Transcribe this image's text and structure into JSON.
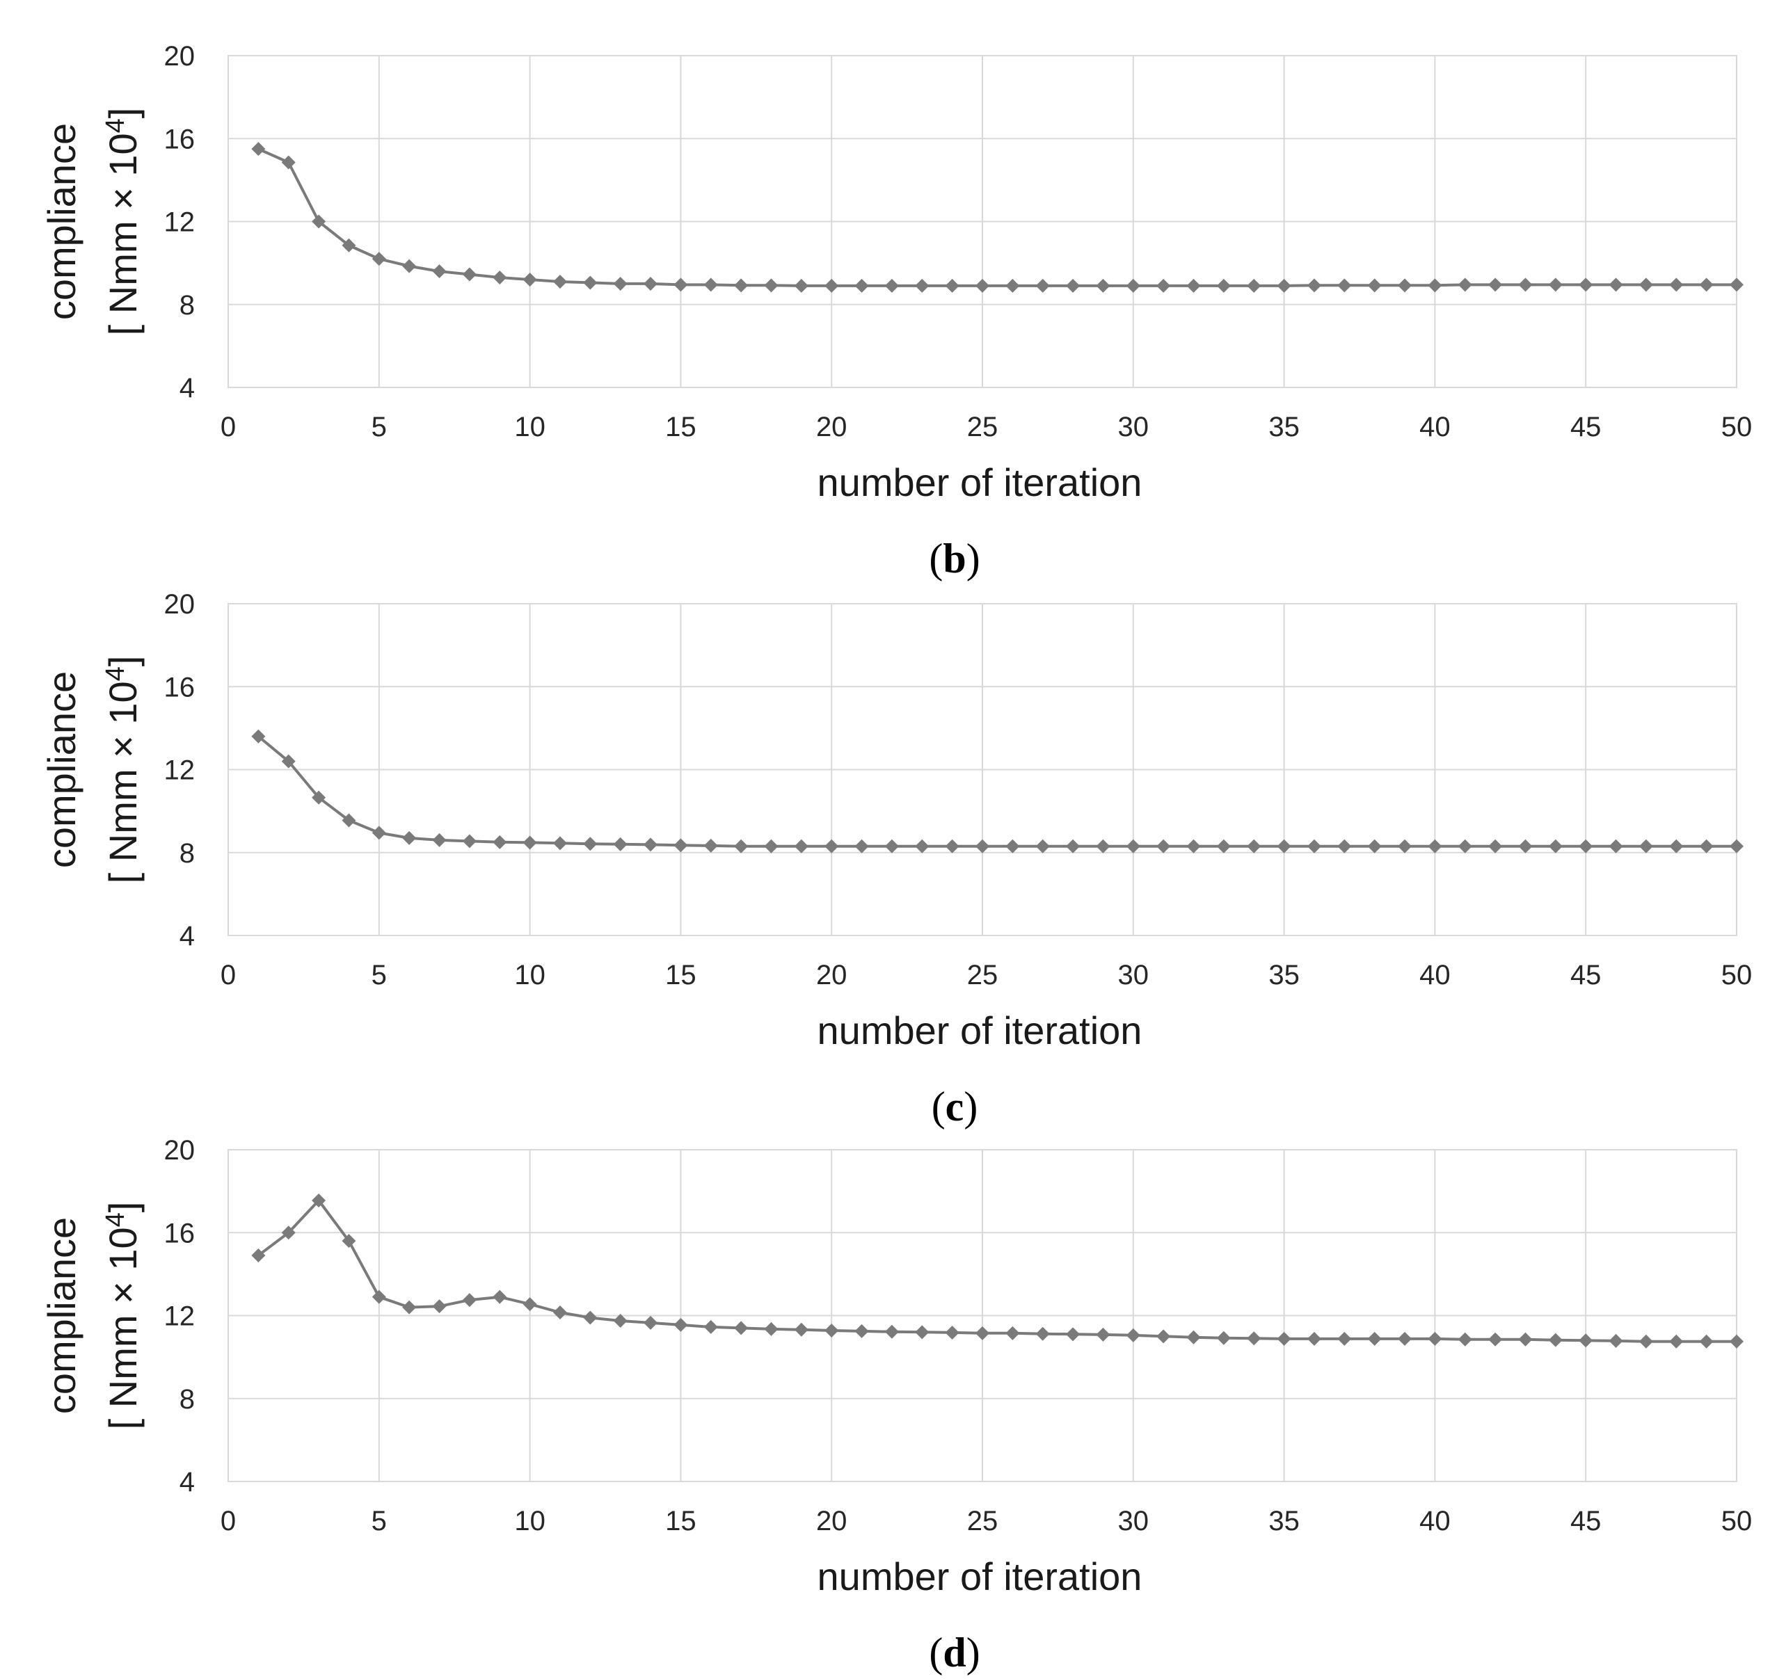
{
  "colors": {
    "series": "#7a7a7a",
    "grid": "#d9d9d9",
    "text": "#262626"
  },
  "marker": "diamond",
  "chart_data": [
    {
      "type": "line",
      "panel": "b",
      "caption": {
        "open": "(",
        "letter": "b",
        "close": ")"
      },
      "xlabel": "number of iteration",
      "ylabel_line1": "compliance",
      "ylabel_line2": "[ Nmm × 10",
      "ylabel_exp": "4",
      "ylabel_close": "]",
      "xlim": [
        0,
        50
      ],
      "ylim": [
        4,
        20
      ],
      "xticks": [
        0,
        5,
        10,
        15,
        20,
        25,
        30,
        35,
        40,
        45,
        50
      ],
      "yticks": [
        4,
        8,
        12,
        16,
        20
      ],
      "grid": true,
      "series": [
        {
          "name": "compliance",
          "x": [
            1,
            2,
            3,
            4,
            5,
            6,
            7,
            8,
            9,
            10,
            11,
            12,
            13,
            14,
            15,
            16,
            17,
            18,
            19,
            20,
            21,
            22,
            23,
            24,
            25,
            26,
            27,
            28,
            29,
            30,
            31,
            32,
            33,
            34,
            35,
            36,
            37,
            38,
            39,
            40,
            41,
            42,
            43,
            44,
            45,
            46,
            47,
            48,
            49,
            50
          ],
          "values": [
            15.5,
            14.85,
            12.0,
            10.85,
            10.2,
            9.85,
            9.6,
            9.45,
            9.3,
            9.2,
            9.1,
            9.05,
            9.0,
            9.0,
            8.95,
            8.95,
            8.92,
            8.92,
            8.9,
            8.9,
            8.9,
            8.9,
            8.9,
            8.9,
            8.9,
            8.9,
            8.9,
            8.9,
            8.9,
            8.9,
            8.9,
            8.9,
            8.9,
            8.9,
            8.9,
            8.92,
            8.92,
            8.92,
            8.92,
            8.92,
            8.95,
            8.95,
            8.95,
            8.95,
            8.95,
            8.95,
            8.95,
            8.95,
            8.95,
            8.95
          ]
        }
      ]
    },
    {
      "type": "line",
      "panel": "c",
      "caption": {
        "open": "(",
        "letter": "c",
        "close": ")"
      },
      "xlabel": "number of iteration",
      "ylabel_line1": "compliance",
      "ylabel_line2": "[ Nmm × 10",
      "ylabel_exp": "4",
      "ylabel_close": "]",
      "xlim": [
        0,
        50
      ],
      "ylim": [
        4,
        20
      ],
      "xticks": [
        0,
        5,
        10,
        15,
        20,
        25,
        30,
        35,
        40,
        45,
        50
      ],
      "yticks": [
        4,
        8,
        12,
        16,
        20
      ],
      "grid": true,
      "series": [
        {
          "name": "compliance",
          "x": [
            1,
            2,
            3,
            4,
            5,
            6,
            7,
            8,
            9,
            10,
            11,
            12,
            13,
            14,
            15,
            16,
            17,
            18,
            19,
            20,
            21,
            22,
            23,
            24,
            25,
            26,
            27,
            28,
            29,
            30,
            31,
            32,
            33,
            34,
            35,
            36,
            37,
            38,
            39,
            40,
            41,
            42,
            43,
            44,
            45,
            46,
            47,
            48,
            49,
            50
          ],
          "values": [
            13.6,
            12.4,
            10.65,
            9.55,
            8.95,
            8.7,
            8.6,
            8.55,
            8.5,
            8.48,
            8.45,
            8.42,
            8.4,
            8.38,
            8.35,
            8.33,
            8.3,
            8.3,
            8.3,
            8.3,
            8.3,
            8.3,
            8.3,
            8.3,
            8.3,
            8.3,
            8.3,
            8.3,
            8.3,
            8.3,
            8.3,
            8.3,
            8.3,
            8.3,
            8.3,
            8.3,
            8.3,
            8.3,
            8.3,
            8.3,
            8.3,
            8.3,
            8.3,
            8.3,
            8.3,
            8.3,
            8.3,
            8.3,
            8.3,
            8.3
          ]
        }
      ]
    },
    {
      "type": "line",
      "panel": "d",
      "caption": {
        "open": "(",
        "letter": "d",
        "close": ")"
      },
      "xlabel": "number of iteration",
      "ylabel_line1": "compliance",
      "ylabel_line2": "[ Nmm × 10",
      "ylabel_exp": "4",
      "ylabel_close": "]",
      "xlim": [
        0,
        50
      ],
      "ylim": [
        4,
        20
      ],
      "xticks": [
        0,
        5,
        10,
        15,
        20,
        25,
        30,
        35,
        40,
        45,
        50
      ],
      "yticks": [
        4,
        8,
        12,
        16,
        20
      ],
      "grid": true,
      "series": [
        {
          "name": "compliance",
          "x": [
            1,
            2,
            3,
            4,
            5,
            6,
            7,
            8,
            9,
            10,
            11,
            12,
            13,
            14,
            15,
            16,
            17,
            18,
            19,
            20,
            21,
            22,
            23,
            24,
            25,
            26,
            27,
            28,
            29,
            30,
            31,
            32,
            33,
            34,
            35,
            36,
            37,
            38,
            39,
            40,
            41,
            42,
            43,
            44,
            45,
            46,
            47,
            48,
            49,
            50
          ],
          "values": [
            14.9,
            16.0,
            17.55,
            15.6,
            12.9,
            12.4,
            12.45,
            12.75,
            12.9,
            12.55,
            12.15,
            11.9,
            11.75,
            11.65,
            11.55,
            11.45,
            11.4,
            11.35,
            11.32,
            11.28,
            11.25,
            11.22,
            11.2,
            11.18,
            11.15,
            11.15,
            11.12,
            11.1,
            11.08,
            11.05,
            11.0,
            10.95,
            10.92,
            10.9,
            10.88,
            10.88,
            10.88,
            10.88,
            10.88,
            10.88,
            10.85,
            10.85,
            10.85,
            10.82,
            10.8,
            10.78,
            10.75,
            10.75,
            10.75,
            10.75
          ]
        }
      ]
    }
  ]
}
